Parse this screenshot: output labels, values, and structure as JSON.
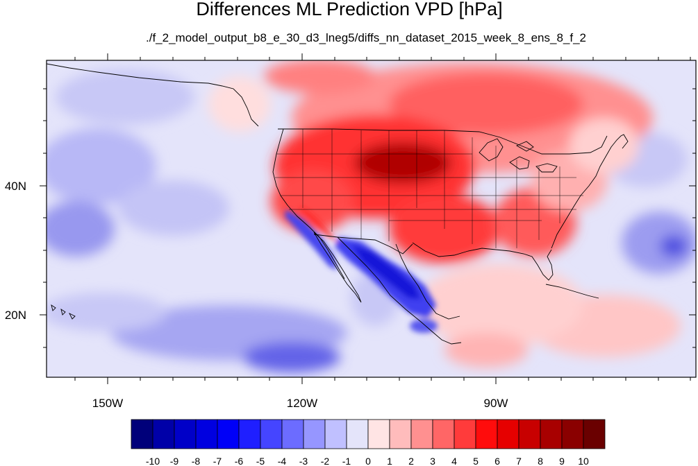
{
  "title": "Differences ML Prediction VPD [hPa]",
  "subtitle": "./f_2_model_output_b8_e_30_d3_lneg5/diffs_nn_dataset_2015_week_8_ens_8_f_2",
  "map": {
    "lon_labels": [
      "150W",
      "120W",
      "90W"
    ],
    "lat_labels": [
      "40N",
      "20N"
    ]
  },
  "colorbar": {
    "tick_labels": [
      "-10",
      "-9",
      "-8",
      "-7",
      "-6",
      "-5",
      "-4",
      "-3",
      "-2",
      "-1",
      "0",
      "1",
      "2",
      "3",
      "4",
      "5",
      "6",
      "7",
      "8",
      "9",
      "10"
    ],
    "colors": [
      "#00007a",
      "#0000a8",
      "#0000c8",
      "#0000e0",
      "#0000f8",
      "#1f1fff",
      "#4545ff",
      "#6c6cff",
      "#9696ff",
      "#c0c0ff",
      "#e4e4fa",
      "#ffe4e4",
      "#ffbcbc",
      "#ff9090",
      "#ff6666",
      "#ff3b3b",
      "#ff0c0c",
      "#e60000",
      "#c80000",
      "#a80000",
      "#8a0000",
      "#6a0000"
    ]
  }
}
